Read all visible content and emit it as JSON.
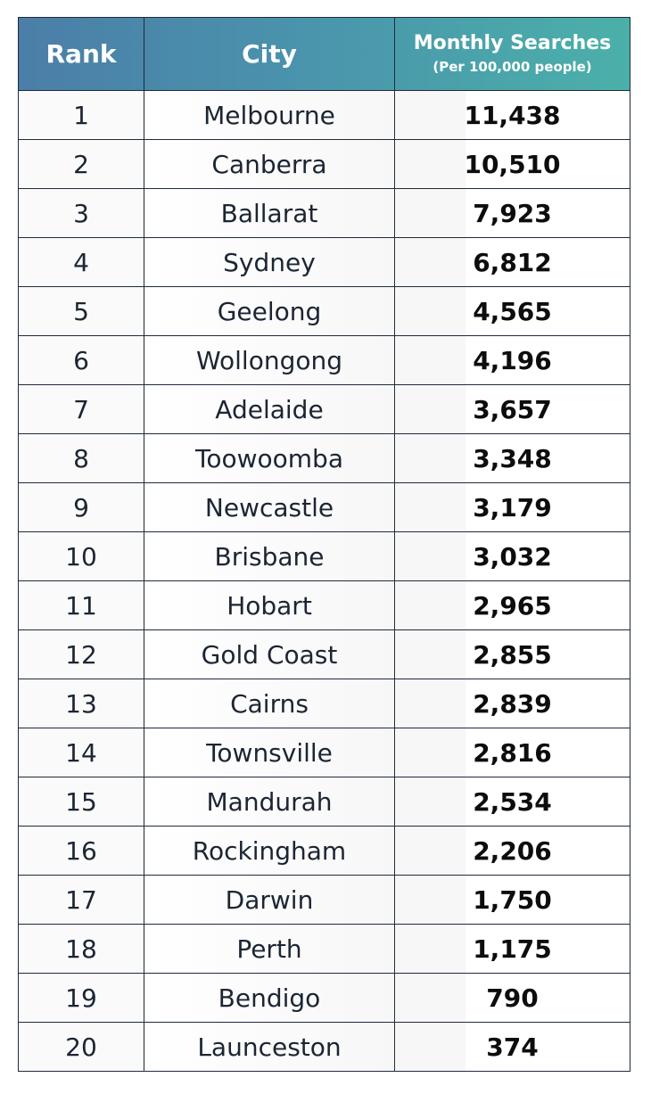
{
  "header": {
    "rank": "Rank",
    "city": "City",
    "searches_title": "Monthly Searches",
    "searches_subtitle": "(Per 100,000 people)"
  },
  "rows": [
    {
      "rank": "1",
      "city": "Melbourne",
      "searches": "11,438"
    },
    {
      "rank": "2",
      "city": "Canberra",
      "searches": "10,510"
    },
    {
      "rank": "3",
      "city": "Ballarat",
      "searches": "7,923"
    },
    {
      "rank": "4",
      "city": "Sydney",
      "searches": "6,812"
    },
    {
      "rank": "5",
      "city": "Geelong",
      "searches": "4,565"
    },
    {
      "rank": "6",
      "city": "Wollongong",
      "searches": "4,196"
    },
    {
      "rank": "7",
      "city": "Adelaide",
      "searches": "3,657"
    },
    {
      "rank": "8",
      "city": "Toowoomba",
      "searches": "3,348"
    },
    {
      "rank": "9",
      "city": "Newcastle",
      "searches": "3,179"
    },
    {
      "rank": "10",
      "city": "Brisbane",
      "searches": "3,032"
    },
    {
      "rank": "11",
      "city": "Hobart",
      "searches": "2,965"
    },
    {
      "rank": "12",
      "city": "Gold Coast",
      "searches": "2,855"
    },
    {
      "rank": "13",
      "city": "Cairns",
      "searches": "2,839"
    },
    {
      "rank": "14",
      "city": "Townsville",
      "searches": "2,816"
    },
    {
      "rank": "15",
      "city": "Mandurah",
      "searches": "2,534"
    },
    {
      "rank": "16",
      "city": "Rockingham",
      "searches": "2,206"
    },
    {
      "rank": "17",
      "city": "Darwin",
      "searches": "1,750"
    },
    {
      "rank": "18",
      "city": "Perth",
      "searches": "1,175"
    },
    {
      "rank": "19",
      "city": "Bendigo",
      "searches": "790"
    },
    {
      "rank": "20",
      "city": "Launceston",
      "searches": "374"
    }
  ]
}
